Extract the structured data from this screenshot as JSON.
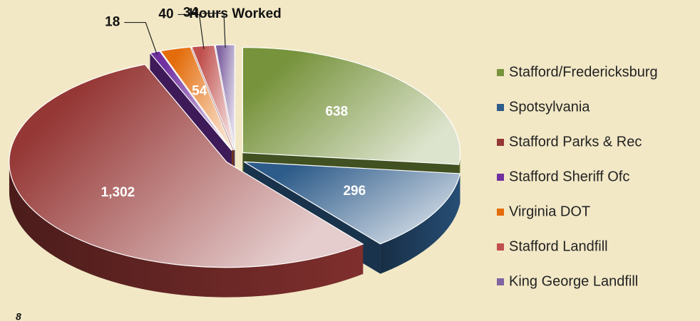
{
  "chart_data": {
    "type": "pie",
    "title": "Hours Worked",
    "categories": [
      "Stafford/Fredericksburg",
      "Spotsylvania",
      "Stafford Parks & Rec",
      "Stafford Sheriff Ofc",
      "Virginia DOT",
      "Stafford Landfill",
      "King George Landfill"
    ],
    "values": [
      638,
      296,
      1302,
      18,
      54,
      40,
      34
    ],
    "value_labels": [
      "638",
      "296",
      "1,302",
      "18",
      "54",
      "40",
      "34"
    ],
    "colors": [
      "#77933c",
      "#2e5c8a",
      "#953735",
      "#7030a0",
      "#e46c0a",
      "#c0504d",
      "#8064a2"
    ],
    "legend": "right",
    "footer": "8"
  }
}
